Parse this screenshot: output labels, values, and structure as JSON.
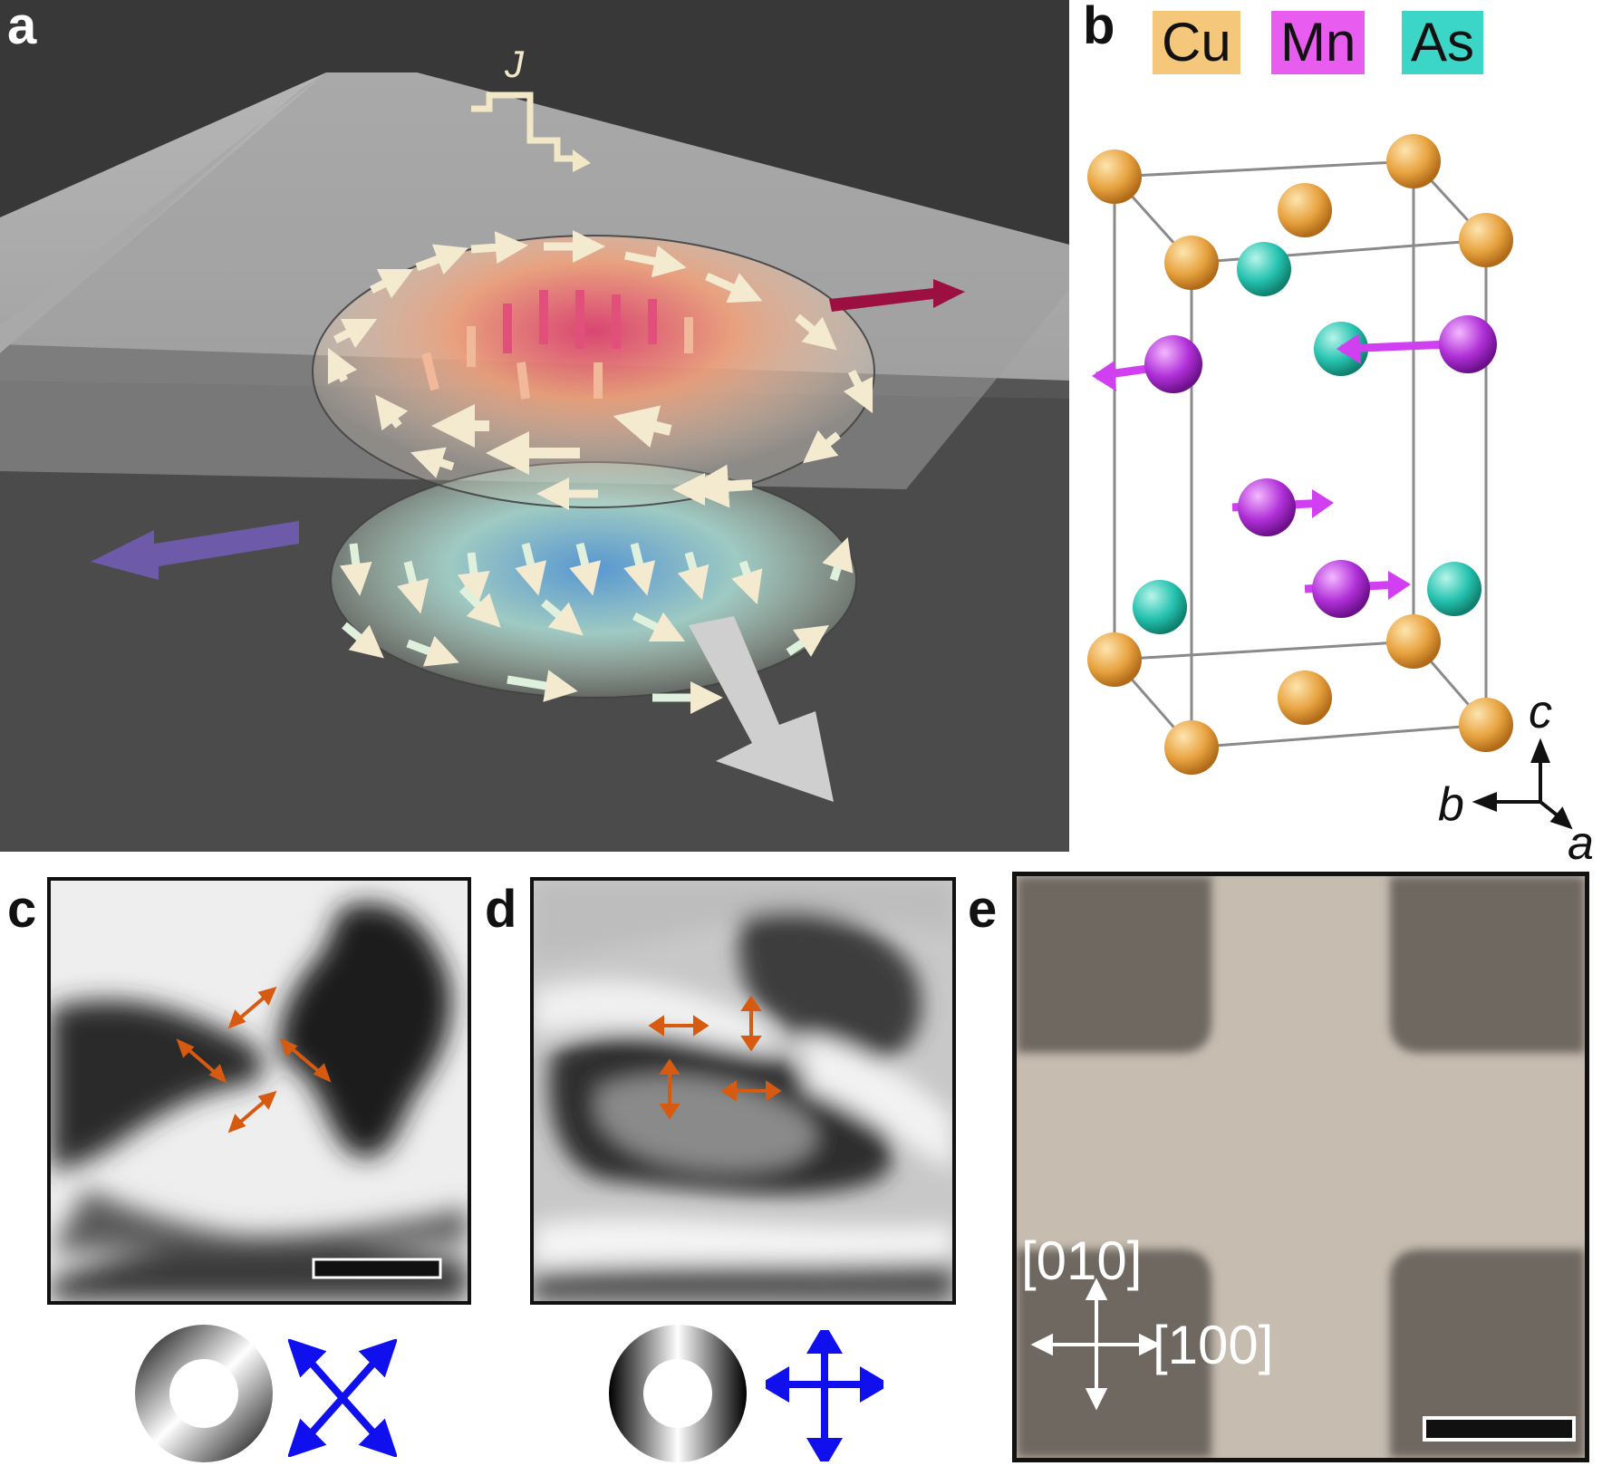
{
  "panels": {
    "a": {
      "letter": "a",
      "current_label": "J"
    },
    "b": {
      "letter": "b",
      "legend": [
        {
          "label": "Cu",
          "color": "#f4c77a"
        },
        {
          "label": "Mn",
          "color": "#e85cf0"
        },
        {
          "label": "As",
          "color": "#3cd6c8"
        }
      ],
      "axes": {
        "c": "c",
        "b": "b",
        "a": "a"
      }
    },
    "c": {
      "letter": "c"
    },
    "d": {
      "letter": "d"
    },
    "e": {
      "letter": "e",
      "dir_y": "[010]",
      "dir_x": "[100]"
    }
  },
  "colors": {
    "orange_arrow": "#d65a10",
    "blue_arrow": "#1010ee",
    "cu": "#e8a340",
    "mn": "#b030d8",
    "as": "#26c2b0"
  }
}
